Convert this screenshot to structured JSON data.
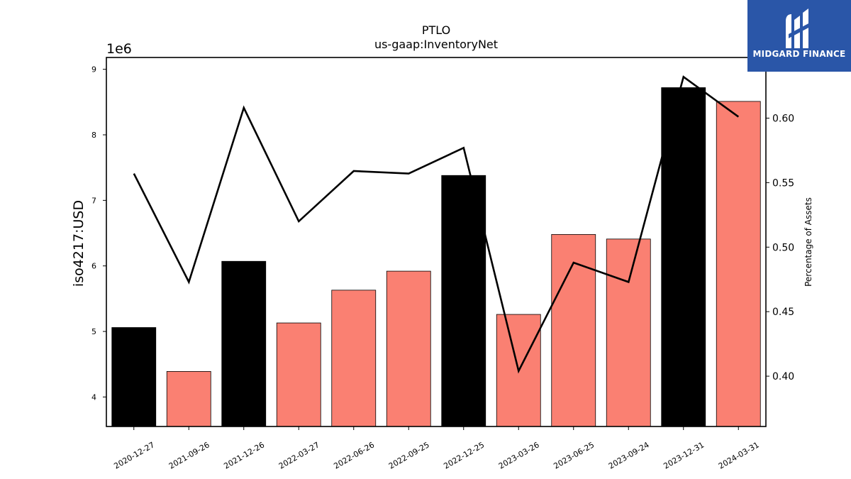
{
  "chart_data": {
    "type": "bar",
    "title": "PTLO",
    "subtitle": "us-gaap:InventoryNet",
    "ylabel": "iso4217:USD",
    "y_offset_label": "1e6",
    "y2label": "Percentage of Assets",
    "categories": [
      "2020-12-27",
      "2021-09-26",
      "2021-12-26",
      "2022-03-27",
      "2022-06-26",
      "2022-09-25",
      "2022-12-25",
      "2023-03-26",
      "2023-06-25",
      "2023-09-24",
      "2023-12-31",
      "2024-03-31"
    ],
    "values": [
      5060000,
      4390000,
      6070000,
      5130000,
      5630000,
      5920000,
      7380000,
      5260000,
      6480000,
      6410000,
      8720000,
      8510000
    ],
    "bar_colors": [
      "#000000",
      "#fa8072",
      "#000000",
      "#fa8072",
      "#fa8072",
      "#fa8072",
      "#000000",
      "#fa8072",
      "#fa8072",
      "#fa8072",
      "#000000",
      "#fa8072"
    ],
    "ylim": [
      3550000,
      9180000
    ],
    "yticks": [
      4,
      5,
      6,
      7,
      8,
      9
    ],
    "line_series": {
      "name": "",
      "values": [
        0.557,
        0.473,
        0.608,
        0.52,
        0.559,
        0.557,
        0.577,
        0.404,
        0.488,
        0.473,
        0.632,
        0.601
      ]
    },
    "y2lim": [
      0.361,
      0.647
    ],
    "y2ticks": [
      "0.40",
      "0.45",
      "0.50",
      "0.55",
      "0.60"
    ],
    "grid": false,
    "legend": "none"
  },
  "logo": {
    "text": "MIDGARD FINANCE",
    "icon": "midgard-logo-icon",
    "color": "#2a56a8"
  }
}
